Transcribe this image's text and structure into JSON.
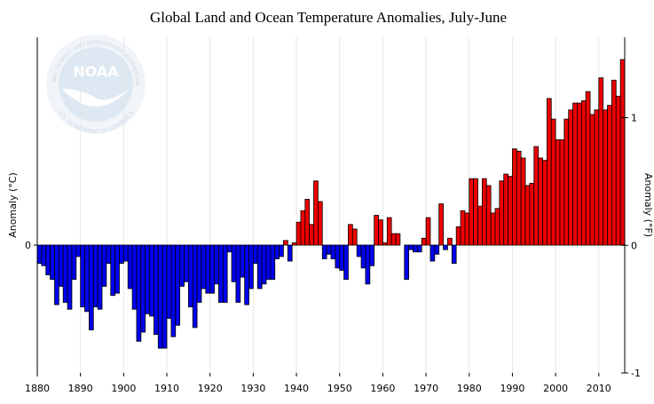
{
  "chart_data": {
    "type": "bar",
    "title": "Global Land and Ocean Temperature Anomalies, July-June",
    "ylabel": "Anomaly (°C)",
    "y2label": "Anomaly (°F)",
    "logo_text": "NOAA",
    "logo_ring_top": "NATIONAL OCEANIC AND ATMOSPHERIC ADMINISTRATION",
    "logo_ring_bottom": "U.S. DEPARTMENT OF COMMERCE",
    "x": [
      1880,
      1881,
      1882,
      1883,
      1884,
      1885,
      1886,
      1887,
      1888,
      1889,
      1890,
      1891,
      1892,
      1893,
      1894,
      1895,
      1896,
      1897,
      1898,
      1899,
      1900,
      1901,
      1902,
      1903,
      1904,
      1905,
      1906,
      1907,
      1908,
      1909,
      1910,
      1911,
      1912,
      1913,
      1914,
      1915,
      1916,
      1917,
      1918,
      1919,
      1920,
      1921,
      1922,
      1923,
      1924,
      1925,
      1926,
      1927,
      1928,
      1929,
      1930,
      1931,
      1932,
      1933,
      1934,
      1935,
      1936,
      1937,
      1938,
      1939,
      1940,
      1941,
      1942,
      1943,
      1944,
      1945,
      1946,
      1947,
      1948,
      1949,
      1950,
      1951,
      1952,
      1953,
      1954,
      1955,
      1956,
      1957,
      1958,
      1959,
      1960,
      1961,
      1962,
      1963,
      1964,
      1965,
      1966,
      1967,
      1968,
      1969,
      1970,
      1971,
      1972,
      1973,
      1974,
      1975,
      1976,
      1977,
      1978,
      1979,
      1980,
      1981,
      1982,
      1983,
      1984,
      1985,
      1986,
      1987,
      1988,
      1989,
      1990,
      1991,
      1992,
      1993,
      1994,
      1995,
      1996,
      1997,
      1998,
      1999,
      2000,
      2001,
      2002,
      2003,
      2004,
      2005,
      2006,
      2007,
      2008,
      2009,
      2010,
      2011,
      2012,
      2013,
      2014,
      2015
    ],
    "values": [
      -0.08,
      -0.09,
      -0.13,
      -0.15,
      -0.26,
      -0.18,
      -0.25,
      -0.28,
      -0.15,
      -0.05,
      -0.27,
      -0.29,
      -0.37,
      -0.27,
      -0.28,
      -0.18,
      -0.08,
      -0.22,
      -0.21,
      -0.08,
      -0.07,
      -0.19,
      -0.28,
      -0.42,
      -0.38,
      -0.3,
      -0.31,
      -0.39,
      -0.45,
      -0.45,
      -0.32,
      -0.4,
      -0.35,
      -0.18,
      -0.16,
      -0.27,
      -0.36,
      -0.25,
      -0.19,
      -0.21,
      -0.21,
      -0.17,
      -0.25,
      -0.25,
      -0.03,
      -0.16,
      -0.25,
      -0.14,
      -0.26,
      -0.19,
      -0.08,
      -0.19,
      -0.17,
      -0.15,
      -0.15,
      -0.06,
      -0.05,
      0.02,
      -0.07,
      0.01,
      0.1,
      0.15,
      0.2,
      0.09,
      0.28,
      0.19,
      -0.06,
      -0.04,
      -0.06,
      -0.1,
      -0.11,
      -0.15,
      0.09,
      0.07,
      -0.05,
      -0.1,
      -0.17,
      -0.09,
      0.13,
      0.11,
      0.01,
      0.12,
      0.05,
      0.05,
      0.0,
      -0.15,
      -0.02,
      -0.03,
      -0.03,
      0.03,
      0.12,
      -0.07,
      -0.04,
      0.18,
      -0.02,
      0.03,
      -0.08,
      0.08,
      0.15,
      0.14,
      0.29,
      0.29,
      0.17,
      0.29,
      0.26,
      0.14,
      0.16,
      0.28,
      0.31,
      0.3,
      0.42,
      0.41,
      0.38,
      0.26,
      0.27,
      0.43,
      0.38,
      0.37,
      0.64,
      0.55,
      0.46,
      0.46,
      0.55,
      0.59,
      0.62,
      0.62,
      0.63,
      0.67,
      0.57,
      0.59,
      0.73,
      0.59,
      0.61,
      0.72,
      0.65,
      0.81
    ],
    "positive_color": "#ee0000",
    "negative_color": "#0000ee",
    "xlim": [
      1880,
      2016
    ],
    "xticks": [
      1880,
      1890,
      1900,
      1910,
      1920,
      1930,
      1940,
      1950,
      1960,
      1970,
      1980,
      1990,
      2000,
      2010
    ],
    "ylim": [
      -0.558,
      0.907
    ],
    "yticks": [
      0
    ],
    "y2lim": [
      -1,
      1.63
    ],
    "y2ticks": [
      -1,
      0,
      1
    ],
    "grid": true
  }
}
